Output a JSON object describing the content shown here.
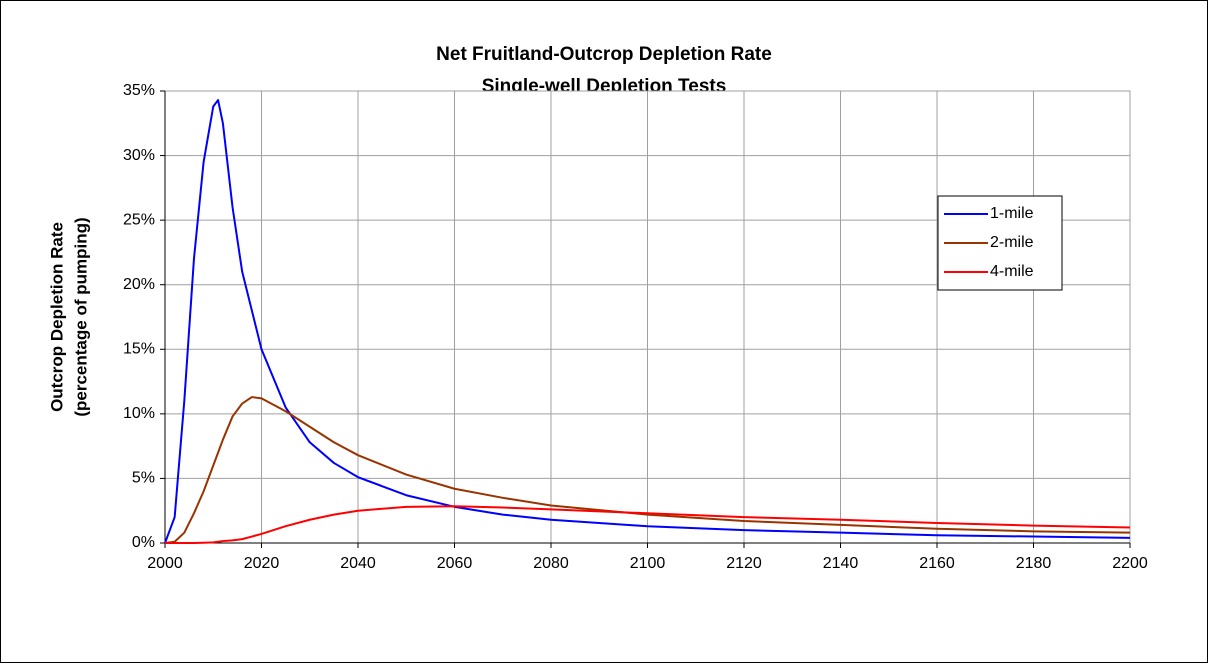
{
  "chart_data": {
    "type": "line",
    "title": "Net Fruitland-Outcrop Depletion Rate",
    "subtitle": "Single-well Depletion Tests",
    "ylabel": [
      "Outcrop Depletion Rate",
      "(percentage of pumping)"
    ],
    "x": [
      2000,
      2002,
      2004,
      2006,
      2008,
      2010,
      2011,
      2012,
      2014,
      2016,
      2018,
      2020,
      2025,
      2030,
      2035,
      2040,
      2050,
      2060,
      2070,
      2080,
      2100,
      2120,
      2140,
      2160,
      2180,
      2200
    ],
    "series": [
      {
        "name": "1-mile",
        "color": "#0000ff",
        "values": [
          0,
          2,
          11,
          22,
          29.5,
          33.8,
          34.3,
          32.5,
          26,
          21,
          18,
          15,
          10.5,
          7.8,
          6.2,
          5.1,
          3.7,
          2.8,
          2.2,
          1.8,
          1.3,
          1.0,
          0.8,
          0.6,
          0.5,
          0.4
        ]
      },
      {
        "name": "2-mile",
        "color": "#993300",
        "values": [
          0,
          0.1,
          0.8,
          2.3,
          4,
          6,
          7,
          8,
          9.8,
          10.8,
          11.3,
          11.2,
          10.2,
          9,
          7.8,
          6.8,
          5.3,
          4.2,
          3.5,
          2.9,
          2.2,
          1.7,
          1.4,
          1.1,
          0.9,
          0.8
        ]
      },
      {
        "name": "4-mile",
        "color": "#ff0000",
        "values": [
          0,
          0,
          0,
          0,
          0.02,
          0.05,
          0.1,
          0.15,
          0.2,
          0.3,
          0.5,
          0.7,
          1.3,
          1.8,
          2.2,
          2.5,
          2.8,
          2.85,
          2.75,
          2.6,
          2.3,
          2.0,
          1.8,
          1.55,
          1.35,
          1.2
        ]
      }
    ],
    "xlim": [
      2000,
      2200
    ],
    "xticks": [
      2000,
      2020,
      2040,
      2060,
      2080,
      2100,
      2120,
      2140,
      2160,
      2180,
      2200
    ],
    "ylim": [
      0,
      35
    ],
    "yticks": [
      {
        "value": 0,
        "label": "0%"
      },
      {
        "value": 5,
        "label": "5%"
      },
      {
        "value": 10,
        "label": "10%"
      },
      {
        "value": 15,
        "label": "15%"
      },
      {
        "value": 20,
        "label": "20%"
      },
      {
        "value": 25,
        "label": "25%"
      },
      {
        "value": 30,
        "label": "30%"
      },
      {
        "value": 35,
        "label": "35%"
      }
    ],
    "grid": true,
    "legend": "upper right"
  }
}
